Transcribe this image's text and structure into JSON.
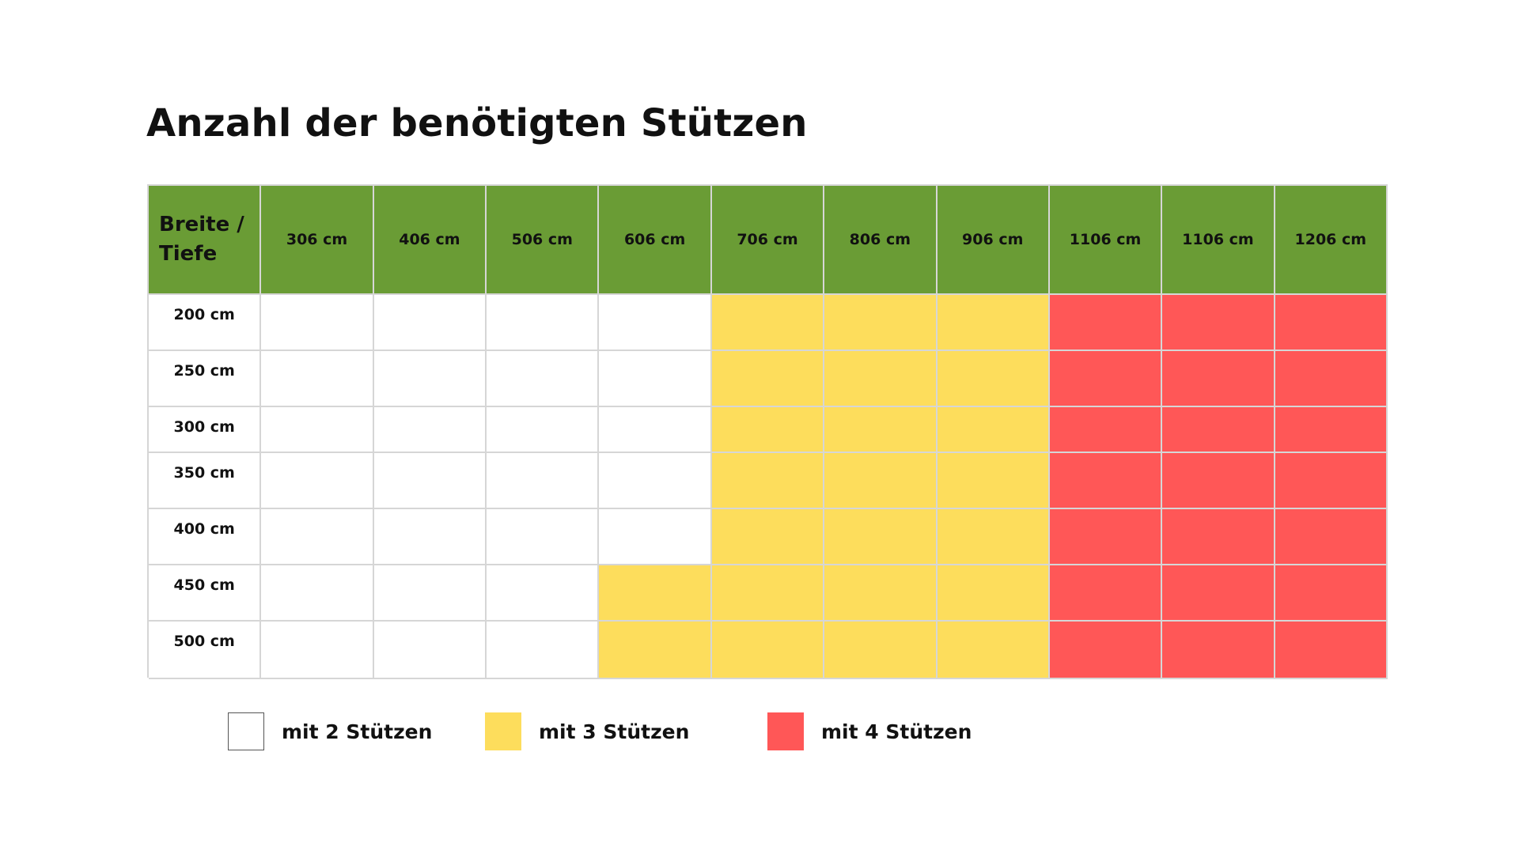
{
  "title": "Anzahl der benötigten Stützen",
  "chart_data": {
    "type": "table",
    "corner_label_line1": "Breite /",
    "corner_label_line2": "Tiefe",
    "columns": [
      "306 cm",
      "406 cm",
      "506 cm",
      "606 cm",
      "706 cm",
      "806 cm",
      "906 cm",
      "1106 cm",
      "1106 cm",
      "1206 cm"
    ],
    "rows": [
      "200 cm",
      "250 cm",
      "300 cm",
      "350 cm",
      "400 cm",
      "450 cm",
      "500 cm"
    ],
    "values": [
      [
        2,
        2,
        2,
        2,
        3,
        3,
        3,
        4,
        4,
        4
      ],
      [
        2,
        2,
        2,
        2,
        3,
        3,
        3,
        4,
        4,
        4
      ],
      [
        2,
        2,
        2,
        2,
        3,
        3,
        3,
        4,
        4,
        4
      ],
      [
        2,
        2,
        2,
        2,
        3,
        3,
        3,
        4,
        4,
        4
      ],
      [
        2,
        2,
        2,
        2,
        3,
        3,
        3,
        4,
        4,
        4
      ],
      [
        2,
        2,
        2,
        3,
        3,
        3,
        3,
        4,
        4,
        4
      ],
      [
        2,
        2,
        2,
        3,
        3,
        3,
        3,
        4,
        4,
        4
      ]
    ],
    "colors": {
      "header": "#6a9c35",
      "2": "#ffffff",
      "3": "#fddd5c",
      "4": "#ff5757"
    },
    "legend": [
      {
        "value": 2,
        "label": "mit 2 Stützen",
        "color": "#ffffff"
      },
      {
        "value": 3,
        "label": "mit 3 Stützen",
        "color": "#fddd5c"
      },
      {
        "value": 4,
        "label": "mit 4 Stützen",
        "color": "#ff5757"
      }
    ]
  }
}
